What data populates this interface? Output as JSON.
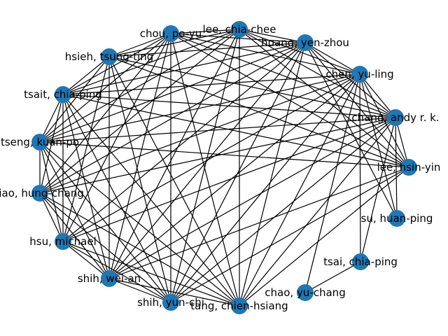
{
  "graph": {
    "node_color": "#1f77b4",
    "edge_color": "#000000",
    "nodes": [
      {
        "id": "lee-chia-chee",
        "label": "lee, chia-chee"
      },
      {
        "id": "huang-yen-zhou",
        "label": "huang, yen-zhou"
      },
      {
        "id": "chen-yu-ling",
        "label": "chen, yu-ling"
      },
      {
        "id": "chang-andy",
        "label": "chang, andy r. k."
      },
      {
        "id": "lee-hsin-yin",
        "label": "lee, hsin-yin"
      },
      {
        "id": "su-huan-ping",
        "label": "su, huan-ping"
      },
      {
        "id": "tsai-chia-ping",
        "label": "tsai, chia-ping"
      },
      {
        "id": "chao-yu-chang",
        "label": "chao, yu-chang"
      },
      {
        "id": "tang-chien-hsiang",
        "label": "tang, chien-hsiang"
      },
      {
        "id": "shih-yun-chi",
        "label": "shih, yun-chi"
      },
      {
        "id": "shih-wei-an",
        "label": "shih, wei-an"
      },
      {
        "id": "hsu-michael",
        "label": "hsu, michael"
      },
      {
        "id": "liao-hung-chang",
        "label": "liao, hung-chang"
      },
      {
        "id": "tseng-kuan-po",
        "label": "tseng, kuan-po"
      },
      {
        "id": "tsait-chia-ping",
        "label": "tsait, chia-ping"
      },
      {
        "id": "hsieh-tsung-ting",
        "label": "hsieh, tsung-ting"
      },
      {
        "id": "chou-po-yu",
        "label": "chou, po-yu"
      }
    ],
    "edges": [
      [
        "chou-po-yu",
        "lee-chia-chee"
      ],
      [
        "chou-po-yu",
        "huang-yen-zhou"
      ],
      [
        "chou-po-yu",
        "chen-yu-ling"
      ],
      [
        "chou-po-yu",
        "chang-andy"
      ],
      [
        "chou-po-yu",
        "lee-hsin-yin"
      ],
      [
        "chou-po-yu",
        "hsieh-tsung-ting"
      ],
      [
        "chou-po-yu",
        "tsait-chia-ping"
      ],
      [
        "chou-po-yu",
        "tseng-kuan-po"
      ],
      [
        "chou-po-yu",
        "liao-hung-chang"
      ],
      [
        "chou-po-yu",
        "hsu-michael"
      ],
      [
        "chou-po-yu",
        "shih-wei-an"
      ],
      [
        "chou-po-yu",
        "shih-yun-chi"
      ],
      [
        "chou-po-yu",
        "tang-chien-hsiang"
      ],
      [
        "lee-chia-chee",
        "huang-yen-zhou"
      ],
      [
        "lee-chia-chee",
        "chen-yu-ling"
      ],
      [
        "lee-chia-chee",
        "chang-andy"
      ],
      [
        "lee-chia-chee",
        "lee-hsin-yin"
      ],
      [
        "lee-chia-chee",
        "hsieh-tsung-ting"
      ],
      [
        "lee-chia-chee",
        "tsait-chia-ping"
      ],
      [
        "lee-chia-chee",
        "tseng-kuan-po"
      ],
      [
        "lee-chia-chee",
        "liao-hung-chang"
      ],
      [
        "lee-chia-chee",
        "shih-wei-an"
      ],
      [
        "lee-chia-chee",
        "shih-yun-chi"
      ],
      [
        "lee-chia-chee",
        "tang-chien-hsiang"
      ],
      [
        "huang-yen-zhou",
        "chen-yu-ling"
      ],
      [
        "huang-yen-zhou",
        "chang-andy"
      ],
      [
        "huang-yen-zhou",
        "lee-hsin-yin"
      ],
      [
        "huang-yen-zhou",
        "su-huan-ping"
      ],
      [
        "huang-yen-zhou",
        "hsieh-tsung-ting"
      ],
      [
        "huang-yen-zhou",
        "tsait-chia-ping"
      ],
      [
        "huang-yen-zhou",
        "tseng-kuan-po"
      ],
      [
        "huang-yen-zhou",
        "liao-hung-chang"
      ],
      [
        "huang-yen-zhou",
        "hsu-michael"
      ],
      [
        "huang-yen-zhou",
        "shih-wei-an"
      ],
      [
        "huang-yen-zhou",
        "shih-yun-chi"
      ],
      [
        "huang-yen-zhou",
        "tang-chien-hsiang"
      ],
      [
        "chen-yu-ling",
        "chang-andy"
      ],
      [
        "chen-yu-ling",
        "lee-hsin-yin"
      ],
      [
        "chen-yu-ling",
        "su-huan-ping"
      ],
      [
        "chen-yu-ling",
        "tsai-chia-ping"
      ],
      [
        "chen-yu-ling",
        "chao-yu-chang"
      ],
      [
        "chen-yu-ling",
        "tsait-chia-ping"
      ],
      [
        "chen-yu-ling",
        "tseng-kuan-po"
      ],
      [
        "chen-yu-ling",
        "liao-hung-chang"
      ],
      [
        "chen-yu-ling",
        "hsu-michael"
      ],
      [
        "chen-yu-ling",
        "shih-wei-an"
      ],
      [
        "chen-yu-ling",
        "shih-yun-chi"
      ],
      [
        "chen-yu-ling",
        "tang-chien-hsiang"
      ],
      [
        "chang-andy",
        "lee-hsin-yin"
      ],
      [
        "chang-andy",
        "su-huan-ping"
      ],
      [
        "chang-andy",
        "tsai-chia-ping"
      ],
      [
        "chang-andy",
        "hsieh-tsung-ting"
      ],
      [
        "chang-andy",
        "tsait-chia-ping"
      ],
      [
        "chang-andy",
        "tseng-kuan-po"
      ],
      [
        "chang-andy",
        "liao-hung-chang"
      ],
      [
        "chang-andy",
        "hsu-michael"
      ],
      [
        "chang-andy",
        "shih-wei-an"
      ],
      [
        "chang-andy",
        "shih-yun-chi"
      ],
      [
        "chang-andy",
        "tang-chien-hsiang"
      ],
      [
        "lee-hsin-yin",
        "hsieh-tsung-ting"
      ],
      [
        "lee-hsin-yin",
        "tsait-chia-ping"
      ],
      [
        "lee-hsin-yin",
        "tseng-kuan-po"
      ],
      [
        "lee-hsin-yin",
        "shih-wei-an"
      ],
      [
        "lee-hsin-yin",
        "shih-yun-chi"
      ],
      [
        "lee-hsin-yin",
        "tang-chien-hsiang"
      ],
      [
        "chao-yu-chang",
        "tsai-chia-ping"
      ],
      [
        "tang-chien-hsiang",
        "hsieh-tsung-ting"
      ],
      [
        "tang-chien-hsiang",
        "tsait-chia-ping"
      ],
      [
        "tang-chien-hsiang",
        "tseng-kuan-po"
      ],
      [
        "tang-chien-hsiang",
        "liao-hung-chang"
      ],
      [
        "tang-chien-hsiang",
        "hsu-michael"
      ],
      [
        "tang-chien-hsiang",
        "shih-wei-an"
      ],
      [
        "shih-yun-chi",
        "hsieh-tsung-ting"
      ],
      [
        "shih-yun-chi",
        "tsait-chia-ping"
      ],
      [
        "shih-yun-chi",
        "tseng-kuan-po"
      ],
      [
        "shih-yun-chi",
        "liao-hung-chang"
      ],
      [
        "shih-yun-chi",
        "hsu-michael"
      ],
      [
        "shih-yun-chi",
        "shih-wei-an"
      ],
      [
        "shih-wei-an",
        "hsieh-tsung-ting"
      ],
      [
        "shih-wei-an",
        "tsait-chia-ping"
      ],
      [
        "shih-wei-an",
        "tseng-kuan-po"
      ],
      [
        "shih-wei-an",
        "liao-hung-chang"
      ],
      [
        "shih-wei-an",
        "hsu-michael"
      ],
      [
        "hsu-michael",
        "hsieh-tsung-ting"
      ],
      [
        "hsu-michael",
        "tsait-chia-ping"
      ],
      [
        "hsu-michael",
        "tseng-kuan-po"
      ],
      [
        "hsu-michael",
        "liao-hung-chang"
      ],
      [
        "liao-hung-chang",
        "tsait-chia-ping"
      ],
      [
        "liao-hung-chang",
        "tseng-kuan-po"
      ],
      [
        "tseng-kuan-po",
        "tsait-chia-ping"
      ],
      [
        "tseng-kuan-po",
        "hsieh-tsung-ting"
      ],
      [
        "tsait-chia-ping",
        "hsieh-tsung-ting"
      ]
    ]
  }
}
